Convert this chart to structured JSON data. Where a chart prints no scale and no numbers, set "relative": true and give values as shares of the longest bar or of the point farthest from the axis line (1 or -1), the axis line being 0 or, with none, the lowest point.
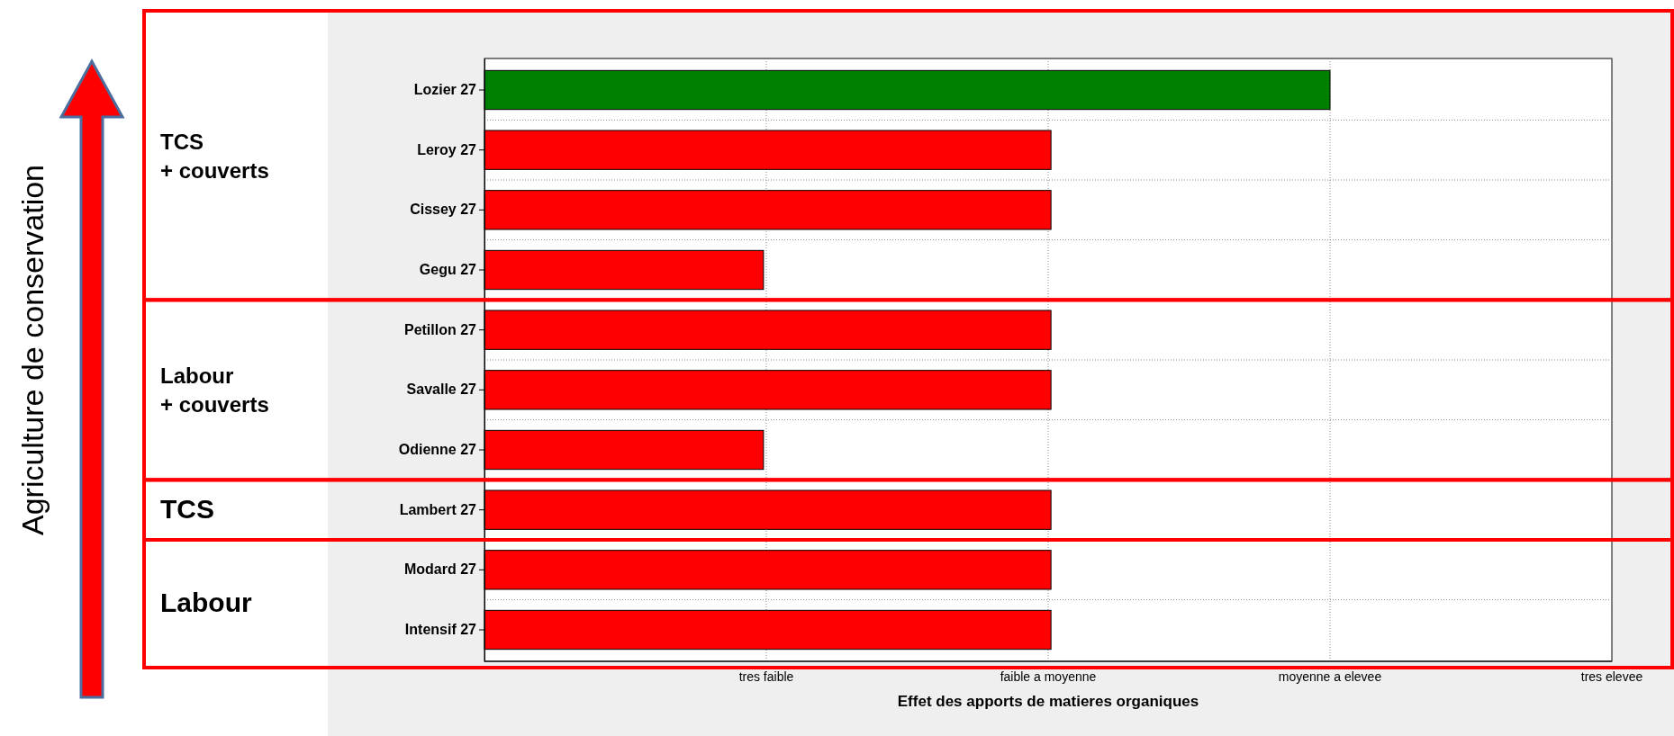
{
  "chart_data": {
    "type": "bar",
    "orientation": "horizontal",
    "relative": true,
    "xlabel": "Effet des apports de matieres organiques",
    "categories": [
      "Lozier 27",
      "Leroy 27",
      "Cissey 27",
      "Gegu 27",
      "Petillon 27",
      "Savalle 27",
      "Odienne 27",
      "Lambert 27",
      "Modard 27",
      "Intensif 27"
    ],
    "values": [
      1,
      0.67,
      0.67,
      0.33,
      0.67,
      0.67,
      0.33,
      0.67,
      0.67,
      0.67
    ],
    "colors": [
      "#008000",
      "#ff0000",
      "#ff0000",
      "#ff0000",
      "#ff0000",
      "#ff0000",
      "#ff0000",
      "#ff0000",
      "#ff0000",
      "#ff0000"
    ],
    "grid": true,
    "annotations": [
      "Agriculture de conservation",
      "tres faible",
      "faible a moyenne",
      "moyenne a elevee",
      "tres elevee",
      "TCS\n+ couverts",
      "Labour\n+ couverts",
      "TCS",
      "Labour"
    ]
  }
}
